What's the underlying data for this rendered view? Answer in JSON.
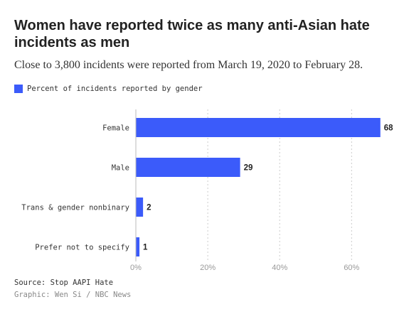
{
  "chart_data": {
    "type": "bar",
    "orientation": "horizontal",
    "title": "Women have reported twice as many anti-Asian hate incidents as men",
    "subtitle": "Close to 3,800 incidents were reported from March 19, 2020 to February 28.",
    "categories": [
      "Female",
      "Male",
      "Trans & gender nonbinary",
      "Prefer not to specify"
    ],
    "series": [
      {
        "name": "Percent of incidents reported by gender",
        "values": [
          68,
          29,
          2,
          1
        ],
        "color": "#3b5bfa"
      }
    ],
    "xlim": [
      0,
      72
    ],
    "xticks": [
      0,
      20,
      40,
      60
    ],
    "xtick_labels": [
      "0%",
      "20%",
      "40%",
      "60%"
    ],
    "grid": true,
    "legend_position": "top-left",
    "source": "Source: Stop AAPI Hate",
    "credit": "Graphic: Wen Si / NBC News"
  }
}
